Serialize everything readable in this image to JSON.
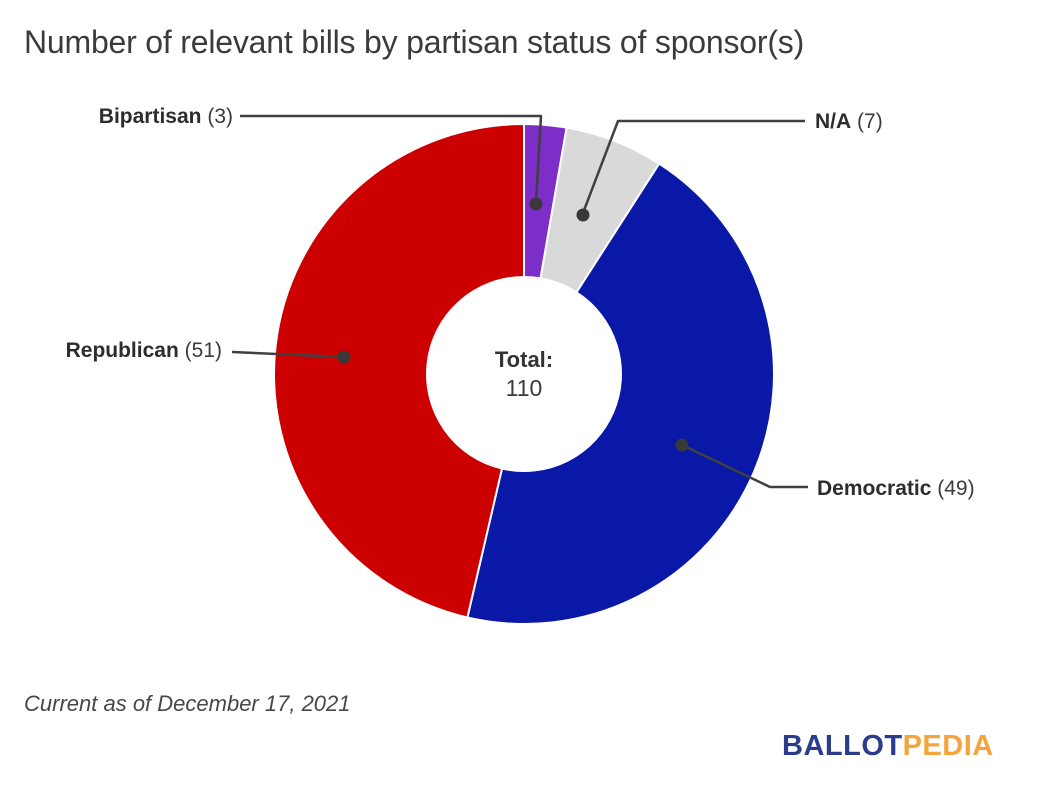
{
  "title": "Number of relevant bills by partisan status of sponsor(s)",
  "center": {
    "label": "Total:",
    "value": "110"
  },
  "callouts": [
    {
      "id": "bipartisan",
      "name": "Bipartisan",
      "count": "(3)"
    },
    {
      "id": "na",
      "name": "N/A",
      "count": "(7)"
    },
    {
      "id": "republican",
      "name": "Republican",
      "count": "(51)"
    },
    {
      "id": "democratic",
      "name": "Democratic",
      "count": "(49)"
    }
  ],
  "footer": {
    "note": "Current as of December 17, 2021"
  },
  "logo": {
    "text_blue": "BALLOT",
    "text_orange": "PEDIA",
    "color_blue": "#2B3C8F",
    "color_orange": "#F5A43B"
  },
  "chart_data": {
    "type": "pie",
    "donut": true,
    "title": "Number of relevant bills by partisan status of sponsor(s)",
    "total_label": "Total:",
    "total": 110,
    "start_angle_deg": 0,
    "direction": "clockwise",
    "slices": [
      {
        "label": "Bipartisan",
        "value": 3,
        "color": "#7D2EC8"
      },
      {
        "label": "N/A",
        "value": 7,
        "color": "#D9D9D9"
      },
      {
        "label": "Democratic",
        "value": 49,
        "color": "#0A18A8"
      },
      {
        "label": "Republican",
        "value": 51,
        "color": "#CC0000"
      }
    ],
    "slice_label_counts": {
      "Bipartisan": 3,
      "N/A": 7,
      "Democratic": 49,
      "Republican": 51
    },
    "legend_position": "callouts",
    "grid": false
  }
}
